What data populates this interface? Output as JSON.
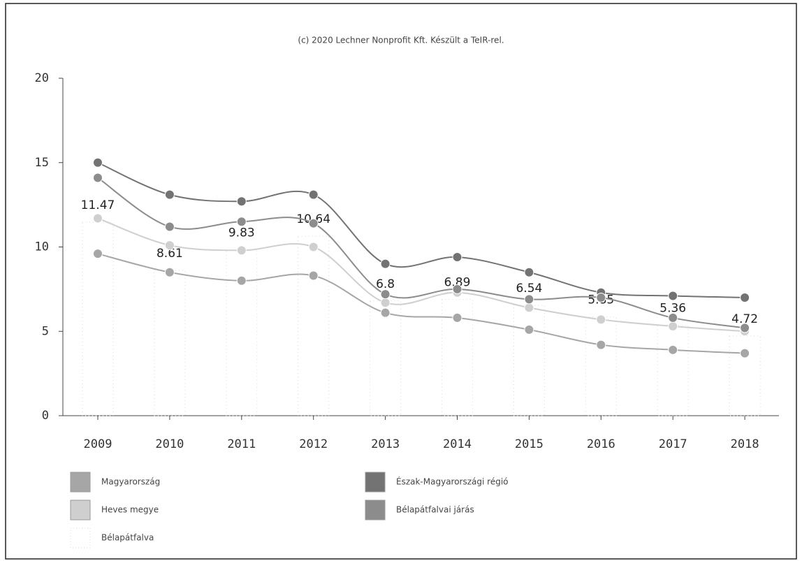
{
  "chart_data": {
    "type": "line",
    "credit": "(c) 2020 Lechner Nonprofit Kft. Készült a TeIR-rel.",
    "categories": [
      "2009",
      "2010",
      "2011",
      "2012",
      "2013",
      "2014",
      "2015",
      "2016",
      "2017",
      "2018"
    ],
    "series": [
      {
        "name": "Magyarország",
        "color": "#a6a6a6",
        "values": [
          9.6,
          8.5,
          8.0,
          8.3,
          6.1,
          5.8,
          5.1,
          4.2,
          3.9,
          3.7
        ]
      },
      {
        "name": "Észak-Magyarországi régió",
        "color": "#737373",
        "values": [
          15.0,
          13.1,
          12.7,
          13.1,
          9.0,
          9.4,
          8.5,
          7.3,
          7.1,
          7.0
        ]
      },
      {
        "name": "Heves megye",
        "color": "#cfcfcf",
        "values": [
          11.7,
          10.1,
          9.8,
          10.0,
          6.7,
          7.3,
          6.4,
          5.7,
          5.3,
          5.0
        ]
      },
      {
        "name": "Bélapátfalvai járás",
        "color": "#8c8c8c",
        "values": [
          14.1,
          11.2,
          11.5,
          11.4,
          7.2,
          7.5,
          6.9,
          7.0,
          5.8,
          5.2
        ]
      },
      {
        "name": "Bélapátfalva",
        "color": "#d9d9d9",
        "type": "bar",
        "values": [
          11.47,
          8.61,
          9.83,
          10.64,
          6.8,
          6.89,
          6.54,
          5.85,
          5.36,
          4.72
        ]
      }
    ],
    "ylim": [
      0,
      20
    ],
    "yticks": [
      0,
      5,
      10,
      15,
      20
    ],
    "grid": false
  }
}
